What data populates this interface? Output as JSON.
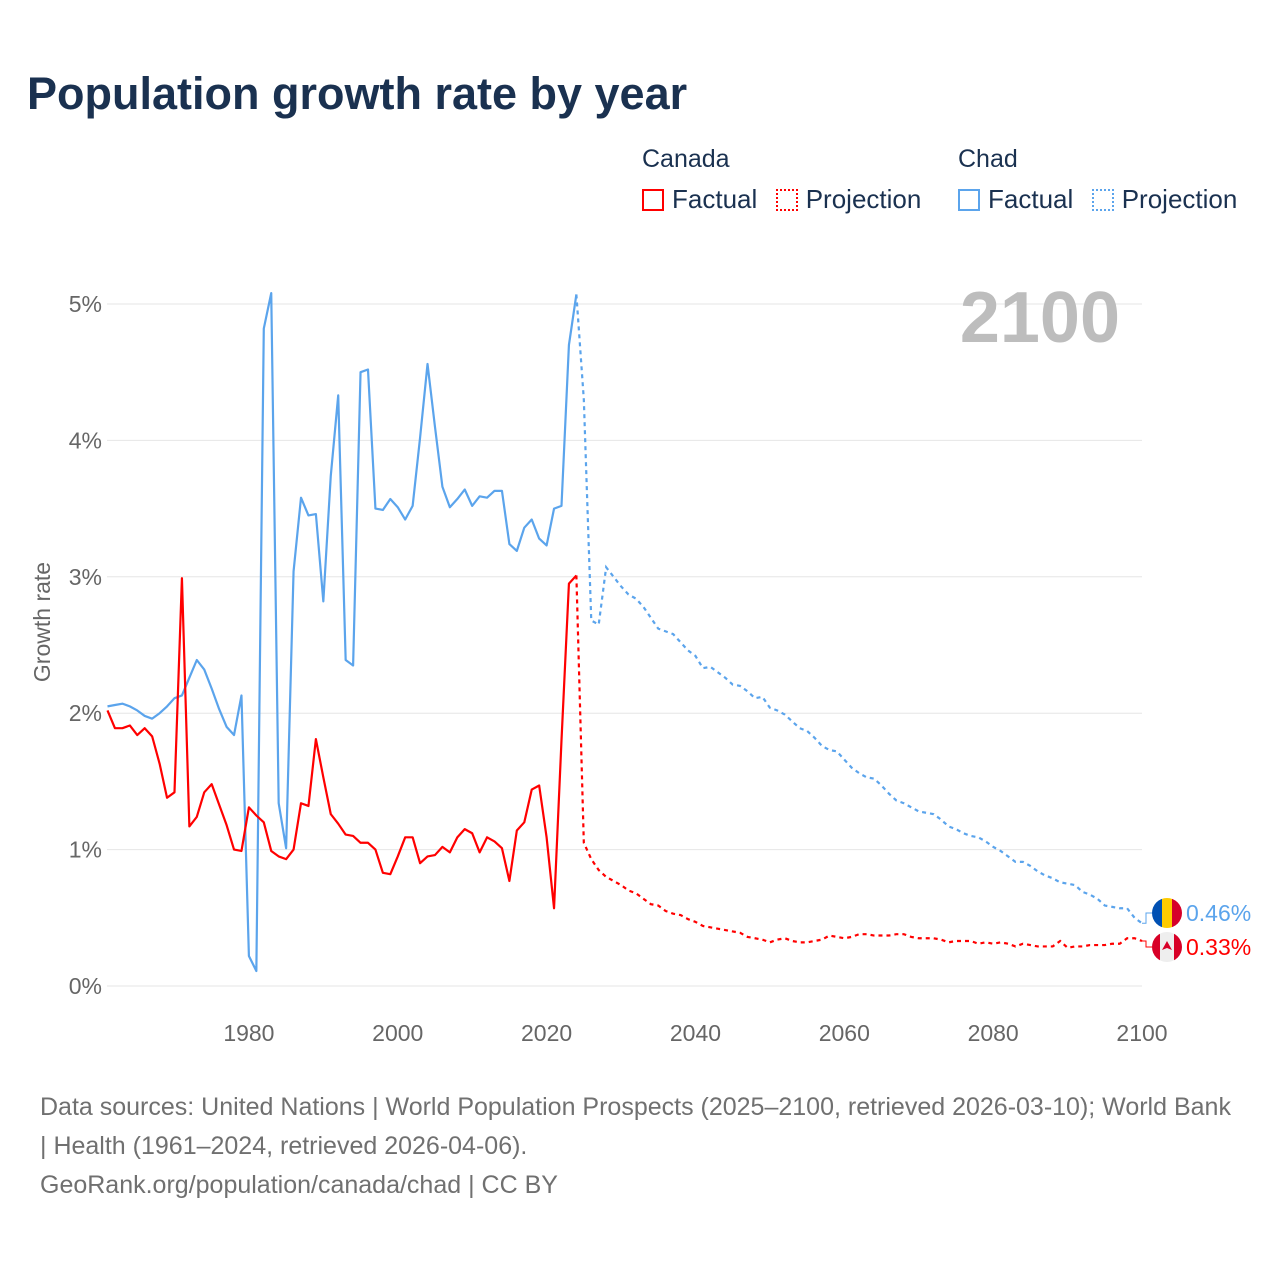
{
  "header": {
    "title": "Population growth rate by year"
  },
  "legend": {
    "groups": [
      {
        "name": "Canada",
        "factual_label": "Factual",
        "projection_label": "Projection",
        "color": "#ff0000"
      },
      {
        "name": "Chad",
        "factual_label": "Factual",
        "projection_label": "Projection",
        "color": "#5ba4ec"
      }
    ]
  },
  "footer": {
    "sources": "Data sources: United Nations | World Population Prospects (2025–2100, retrieved 2026-03-10); World Bank | Health (1961–2024, retrieved 2026-04-06).",
    "credit": "GeoRank.org/population/canada/chad | CC BY"
  },
  "chart_data": {
    "type": "line",
    "title": "Population growth rate by year",
    "xlabel": "",
    "ylabel": "Growth rate",
    "xlim": [
      1961,
      2100
    ],
    "ylim": [
      0,
      5
    ],
    "x_ticks": [
      1980,
      2000,
      2020,
      2040,
      2060,
      2080,
      2100
    ],
    "y_ticks": [
      0,
      1,
      2,
      3,
      4,
      5
    ],
    "y_tick_labels": [
      "0%",
      "1%",
      "2%",
      "3%",
      "4%",
      "5%"
    ],
    "grid": true,
    "year_watermark": "2100",
    "factual_years": [
      1961,
      2024
    ],
    "projection_years": [
      2025,
      2100
    ],
    "series": [
      {
        "name": "Canada",
        "color": "#ff0000",
        "end_label": "0.33%",
        "flag": "canada-flag",
        "factual": [
          2.02,
          1.89,
          1.89,
          1.91,
          1.84,
          1.89,
          1.83,
          1.63,
          1.38,
          1.42,
          2.99,
          1.17,
          1.24,
          1.42,
          1.48,
          1.33,
          1.18,
          1.0,
          0.99,
          1.31,
          1.25,
          1.2,
          0.99,
          0.95,
          0.93,
          1.0,
          1.34,
          1.32,
          1.81,
          1.53,
          1.26,
          1.19,
          1.11,
          1.1,
          1.05,
          1.05,
          1.0,
          0.83,
          0.82,
          0.95,
          1.09,
          1.09,
          0.9,
          0.95,
          0.96,
          1.02,
          0.98,
          1.09,
          1.15,
          1.12,
          0.98,
          1.09,
          1.06,
          1.01,
          0.77,
          1.14,
          1.2,
          1.44,
          1.47,
          1.09,
          0.57,
          1.8,
          2.95,
          3.01
        ],
        "projection": [
          1.05,
          0.93,
          0.85,
          0.8,
          0.77,
          0.74,
          0.7,
          0.68,
          0.64,
          0.6,
          0.59,
          0.55,
          0.53,
          0.52,
          0.49,
          0.47,
          0.44,
          0.43,
          0.42,
          0.41,
          0.4,
          0.39,
          0.36,
          0.35,
          0.34,
          0.32,
          0.34,
          0.35,
          0.33,
          0.32,
          0.32,
          0.33,
          0.34,
          0.37,
          0.36,
          0.35,
          0.36,
          0.38,
          0.38,
          0.37,
          0.37,
          0.37,
          0.38,
          0.38,
          0.36,
          0.35,
          0.35,
          0.35,
          0.34,
          0.32,
          0.33,
          0.33,
          0.33,
          0.31,
          0.32,
          0.31,
          0.32,
          0.31,
          0.29,
          0.31,
          0.3,
          0.29,
          0.29,
          0.29,
          0.33,
          0.28,
          0.29,
          0.29,
          0.3,
          0.3,
          0.3,
          0.31,
          0.31,
          0.35,
          0.35,
          0.33
        ]
      },
      {
        "name": "Chad",
        "color": "#5ba4ec",
        "end_label": "0.46%",
        "flag": "chad-flag",
        "factual": [
          2.05,
          2.06,
          2.07,
          2.05,
          2.02,
          1.98,
          1.96,
          2.0,
          2.05,
          2.11,
          2.13,
          2.26,
          2.39,
          2.32,
          2.18,
          2.03,
          1.9,
          1.84,
          2.13,
          0.22,
          0.11,
          4.82,
          5.08,
          1.34,
          1.01,
          3.04,
          3.58,
          3.45,
          3.46,
          2.82,
          3.74,
          4.33,
          2.39,
          2.35,
          4.5,
          4.52,
          3.5,
          3.49,
          3.57,
          3.51,
          3.42,
          3.52,
          4.02,
          4.56,
          4.1,
          3.66,
          3.51,
          3.57,
          3.64,
          3.52,
          3.59,
          3.58,
          3.63,
          3.63,
          3.24,
          3.19,
          3.36,
          3.42,
          3.28,
          3.23,
          3.5,
          3.52,
          4.7,
          5.07
        ],
        "projection": [
          4.3,
          2.68,
          2.65,
          3.07,
          3.0,
          2.93,
          2.87,
          2.84,
          2.78,
          2.7,
          2.62,
          2.6,
          2.58,
          2.52,
          2.46,
          2.42,
          2.33,
          2.34,
          2.3,
          2.26,
          2.21,
          2.2,
          2.16,
          2.11,
          2.12,
          2.04,
          2.02,
          1.99,
          1.94,
          1.89,
          1.87,
          1.82,
          1.76,
          1.73,
          1.72,
          1.66,
          1.6,
          1.56,
          1.53,
          1.52,
          1.47,
          1.41,
          1.36,
          1.34,
          1.31,
          1.28,
          1.27,
          1.26,
          1.22,
          1.17,
          1.15,
          1.12,
          1.1,
          1.09,
          1.06,
          1.02,
          0.99,
          0.95,
          0.91,
          0.91,
          0.88,
          0.84,
          0.81,
          0.79,
          0.76,
          0.75,
          0.74,
          0.69,
          0.67,
          0.64,
          0.59,
          0.58,
          0.57,
          0.57,
          0.5,
          0.46
        ]
      }
    ]
  }
}
